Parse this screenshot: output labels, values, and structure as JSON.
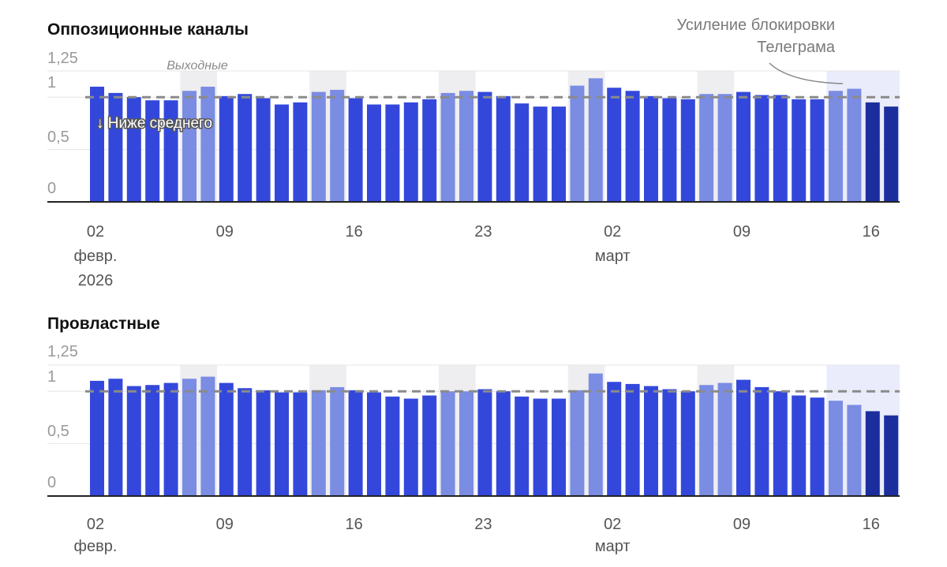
{
  "colors": {
    "weekday": "#3348db",
    "weekend": "#7b8ce3",
    "latest": "#1c2e9e",
    "weekend_band": "#eeeef0",
    "block_band": "#eaecfb",
    "average_line": "#8a8a8a",
    "axis": "#222222",
    "grid": "#e6e6e6"
  },
  "annotations": {
    "weekend_label": "Выходные",
    "blocking_label_line1": "Усиление блокировки",
    "blocking_label_line2": "Телеграма",
    "below_average_label": "↓ Ниже среднего"
  },
  "chart_data": [
    {
      "type": "bar",
      "title": "Оппозиционные каналы",
      "x_start_date": "2026-02-02",
      "y_ticks": [
        {
          "value": 0,
          "label": "0"
        },
        {
          "value": 0.5,
          "label": "0,5"
        },
        {
          "value": 1,
          "label": "1"
        },
        {
          "value": 1.25,
          "label": "1,25"
        }
      ],
      "ylim": [
        0,
        1.25
      ],
      "average": 1.0,
      "weekend_indices": [
        5,
        6,
        12,
        13,
        19,
        20,
        26,
        27,
        33,
        34,
        40,
        41
      ],
      "latest_indices": [
        42,
        43
      ],
      "blocking_start_index": 40,
      "x_ticks": [
        {
          "index": 0,
          "lines": [
            "02",
            "февр.",
            "2026"
          ]
        },
        {
          "index": 7,
          "lines": [
            "09"
          ]
        },
        {
          "index": 14,
          "lines": [
            "16"
          ]
        },
        {
          "index": 21,
          "lines": [
            "23"
          ]
        },
        {
          "index": 28,
          "lines": [
            "02",
            "март"
          ]
        },
        {
          "index": 35,
          "lines": [
            "09"
          ]
        },
        {
          "index": 42,
          "lines": [
            "16"
          ]
        }
      ],
      "values": [
        1.1,
        1.04,
        1.0,
        0.97,
        0.97,
        1.06,
        1.1,
        1.01,
        1.03,
        0.99,
        0.93,
        0.95,
        1.05,
        1.07,
        0.99,
        0.93,
        0.93,
        0.95,
        0.98,
        1.04,
        1.06,
        1.05,
        1.01,
        0.94,
        0.91,
        0.91,
        1.11,
        1.18,
        1.09,
        1.06,
        1.01,
        0.99,
        0.98,
        1.03,
        1.03,
        1.05,
        1.02,
        1.02,
        0.98,
        0.98,
        1.06,
        1.08,
        0.95,
        0.91
      ]
    },
    {
      "type": "bar",
      "title": "Провластные",
      "x_start_date": "2026-02-02",
      "y_ticks": [
        {
          "value": 0,
          "label": "0"
        },
        {
          "value": 0.5,
          "label": "0,5"
        },
        {
          "value": 1,
          "label": "1"
        },
        {
          "value": 1.25,
          "label": "1,25"
        }
      ],
      "ylim": [
        0,
        1.25
      ],
      "average": 1.0,
      "weekend_indices": [
        5,
        6,
        12,
        13,
        19,
        20,
        26,
        27,
        33,
        34,
        40,
        41
      ],
      "latest_indices": [
        42,
        43
      ],
      "blocking_start_index": 40,
      "x_ticks": [
        {
          "index": 0,
          "lines": [
            "02",
            "февр."
          ]
        },
        {
          "index": 7,
          "lines": [
            "09"
          ]
        },
        {
          "index": 14,
          "lines": [
            "16"
          ]
        },
        {
          "index": 21,
          "lines": [
            "23"
          ]
        },
        {
          "index": 28,
          "lines": [
            "02",
            "март"
          ]
        },
        {
          "index": 35,
          "lines": [
            "09"
          ]
        },
        {
          "index": 42,
          "lines": [
            "16"
          ]
        }
      ],
      "values": [
        1.1,
        1.12,
        1.05,
        1.06,
        1.08,
        1.12,
        1.14,
        1.08,
        1.03,
        1.01,
        0.99,
        0.99,
        1.01,
        1.04,
        1.01,
        0.99,
        0.95,
        0.93,
        0.96,
        1.0,
        1.0,
        1.02,
        1.0,
        0.95,
        0.93,
        0.93,
        1.01,
        1.17,
        1.09,
        1.07,
        1.05,
        1.02,
        1.0,
        1.06,
        1.08,
        1.11,
        1.04,
        1.0,
        0.96,
        0.94,
        0.91,
        0.87,
        0.81,
        0.77
      ]
    }
  ]
}
